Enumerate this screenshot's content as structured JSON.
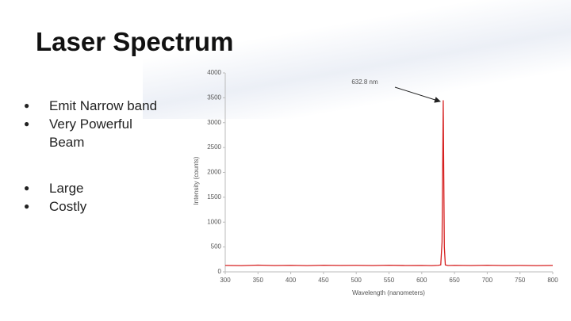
{
  "slide": {
    "title": "Laser Spectrum",
    "bullets": [
      [
        "Emit Narrow band",
        "Very Powerful Beam"
      ],
      [
        "Large",
        "Costly"
      ]
    ]
  },
  "chart_data": {
    "type": "line",
    "xlabel": "Wavelength (nanometers)",
    "ylabel": "Intensity (counts)",
    "annotation": "632.8 nm",
    "x": [
      300,
      325,
      350,
      375,
      400,
      425,
      450,
      475,
      500,
      525,
      550,
      575,
      600,
      615,
      625,
      629,
      631,
      632,
      632.8,
      633.6,
      634.5,
      636,
      640,
      650,
      675,
      700,
      725,
      750,
      775,
      800
    ],
    "series": [
      {
        "name": "Intensity",
        "color": "#d62020",
        "values": [
          130,
          125,
          135,
          128,
          132,
          126,
          134,
          129,
          131,
          127,
          133,
          128,
          130,
          126,
          132,
          140,
          600,
          2200,
          3450,
          2000,
          500,
          140,
          128,
          131,
          127,
          133,
          128,
          130,
          126,
          129
        ]
      }
    ],
    "xlim": [
      300,
      800
    ],
    "xticks": [
      300,
      350,
      400,
      450,
      500,
      550,
      600,
      650,
      700,
      750,
      800
    ],
    "ylim": [
      0,
      4000
    ],
    "yticks": [
      0,
      500,
      1000,
      1500,
      2000,
      2500,
      3000,
      3500,
      4000
    ]
  }
}
